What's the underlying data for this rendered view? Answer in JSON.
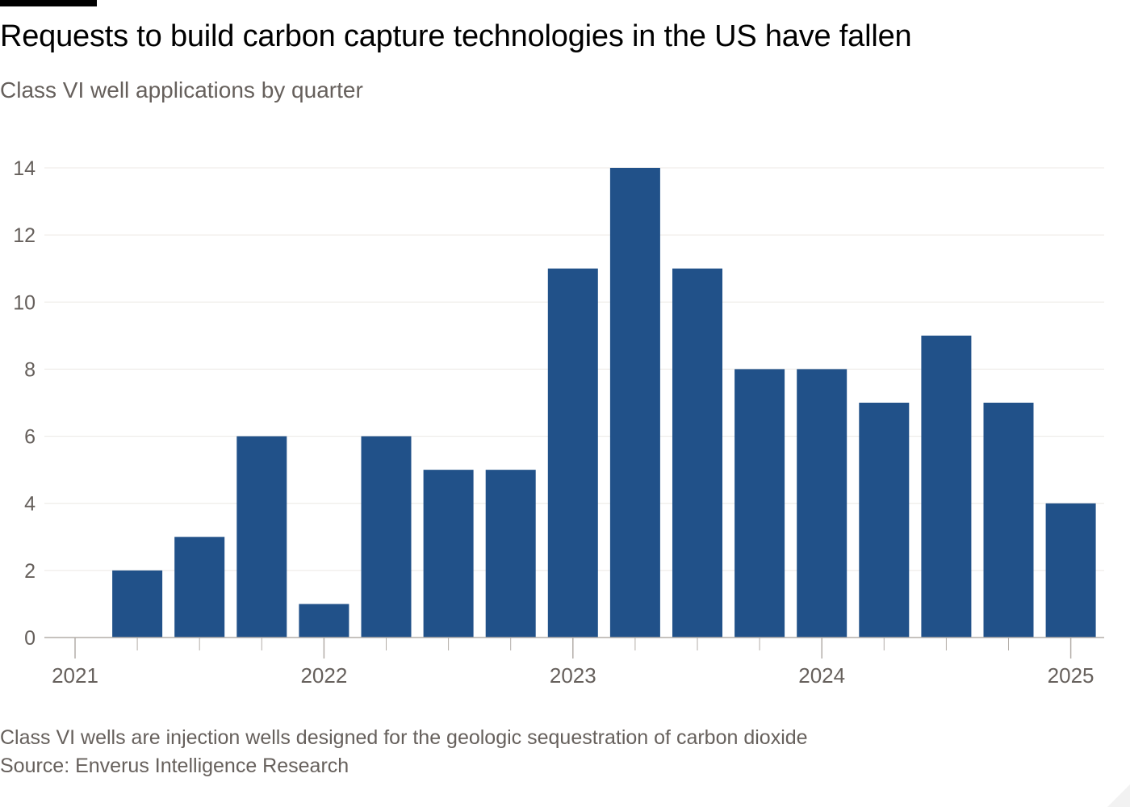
{
  "chart_data": {
    "type": "bar",
    "title": "Requests to build carbon capture technologies in the US have fallen",
    "subtitle": "Class VI well applications by quarter",
    "xlabel": "",
    "ylabel": "",
    "categories": [
      "2021 Q1",
      "2021 Q2",
      "2021 Q3",
      "2021 Q4",
      "2022 Q1",
      "2022 Q2",
      "2022 Q3",
      "2022 Q4",
      "2023 Q1",
      "2023 Q2",
      "2023 Q3",
      "2023 Q4",
      "2024 Q1",
      "2024 Q2",
      "2024 Q3",
      "2024 Q4",
      "2025 Q1"
    ],
    "values": [
      0,
      2,
      3,
      6,
      1,
      6,
      5,
      5,
      11,
      14,
      11,
      8,
      8,
      7,
      9,
      7,
      4
    ],
    "ylim": [
      0,
      14
    ],
    "yticks": [
      0,
      2,
      4,
      6,
      8,
      10,
      12,
      14
    ],
    "year_ticks": [
      {
        "label": "2021",
        "index": 0
      },
      {
        "label": "2022",
        "index": 4
      },
      {
        "label": "2023",
        "index": 8
      },
      {
        "label": "2024",
        "index": 12
      },
      {
        "label": "2025",
        "index": 16
      }
    ],
    "grid": true,
    "legend": "none",
    "bar_color": "#215189",
    "grid_color": "#ece8e4",
    "axis_color": "#b3ada8",
    "tick_label_color": "#66605c"
  },
  "footer": {
    "note": "Class VI wells are injection wells designed for the geologic sequestration of carbon dioxide",
    "source": "Source: Enverus Intelligence Research"
  }
}
